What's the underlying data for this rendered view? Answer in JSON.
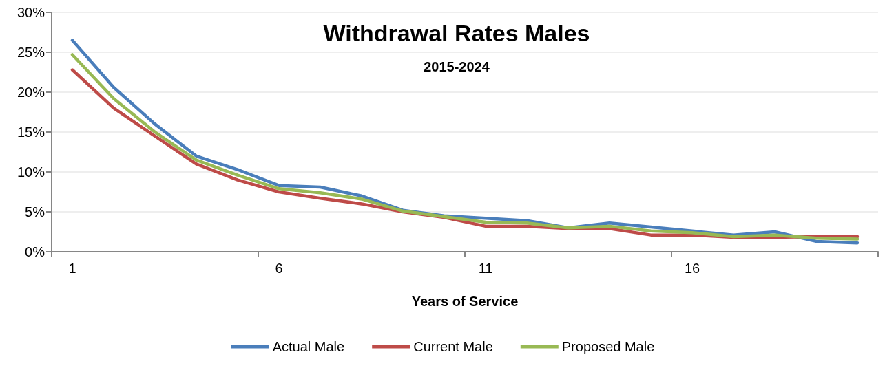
{
  "chart_data": {
    "type": "line",
    "title": "Withdrawal Rates Males",
    "subtitle": "2015-2024",
    "xlabel": "Years of Service",
    "categories": [
      "1",
      null,
      null,
      null,
      null,
      "6",
      null,
      null,
      null,
      null,
      "11",
      null,
      null,
      null,
      null,
      "16",
      null,
      null,
      null,
      null
    ],
    "series": [
      {
        "name": "Actual Male",
        "color": "#4a7ebb",
        "values": [
          26.5,
          20.6,
          16.0,
          12.0,
          10.3,
          8.3,
          8.1,
          7.0,
          5.2,
          4.5,
          4.2,
          3.9,
          3.0,
          3.6,
          3.1,
          2.6,
          2.1,
          2.5,
          1.3,
          1.1
        ]
      },
      {
        "name": "Current Male",
        "color": "#be4b48",
        "values": [
          22.8,
          18.0,
          14.5,
          11.0,
          9.0,
          7.5,
          6.7,
          6.0,
          5.0,
          4.3,
          3.2,
          3.2,
          2.9,
          2.9,
          2.1,
          2.1,
          1.8,
          1.8,
          1.9,
          1.9
        ]
      },
      {
        "name": "Proposed Male",
        "color": "#98b954",
        "values": [
          24.7,
          19.2,
          15.0,
          11.5,
          9.6,
          7.9,
          7.4,
          6.6,
          5.1,
          4.4,
          3.7,
          3.6,
          3.0,
          3.2,
          2.6,
          2.4,
          1.9,
          2.1,
          1.7,
          1.6
        ]
      }
    ],
    "ylim": [
      0,
      30
    ],
    "yticks": [
      {
        "value": 0,
        "label": "0%"
      },
      {
        "value": 5,
        "label": "5%"
      },
      {
        "value": 10,
        "label": "10%"
      },
      {
        "value": 15,
        "label": "15%"
      },
      {
        "value": 20,
        "label": "20%"
      },
      {
        "value": 25,
        "label": "25%"
      },
      {
        "value": 30,
        "label": "30%"
      }
    ],
    "grid": "y",
    "legend": "bottom",
    "marker": "none",
    "line_style": "solid"
  }
}
